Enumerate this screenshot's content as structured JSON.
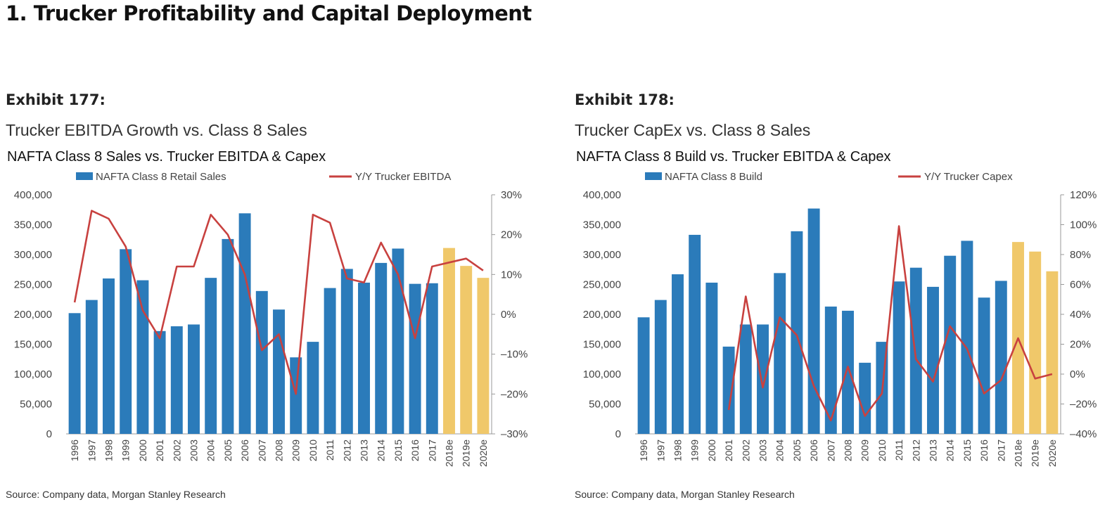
{
  "page": {
    "title": "1. Trucker Profitability and Capital Deployment"
  },
  "colors": {
    "bar": "#2b7bba",
    "bar_forecast": "#f0c86a",
    "line": "#c8413f",
    "axis": "#999999"
  },
  "exhibits": [
    {
      "number": "Exhibit 177:",
      "subtitle": "Trucker EBITDA Growth vs. Class 8 Sales",
      "source": "Source: Company data, Morgan Stanley Research"
    },
    {
      "number": "Exhibit 178:",
      "subtitle": "Trucker CapEx vs. Class 8 Sales",
      "source": "Source: Company data, Morgan Stanley Research"
    }
  ],
  "chart_data": [
    {
      "type": "bar",
      "title": "NAFTA Class 8 Sales vs. Trucker EBITDA & Capex",
      "categories": [
        "1996",
        "1997",
        "1998",
        "1999",
        "2000",
        "2001",
        "2002",
        "2003",
        "2004",
        "2005",
        "2006",
        "2007",
        "2008",
        "2009",
        "2010",
        "2011",
        "2012",
        "2013",
        "2014",
        "2015",
        "2016",
        "2017",
        "2018e",
        "2019e",
        "2020e"
      ],
      "forecast_categories": [
        "2018e",
        "2019e",
        "2020e"
      ],
      "series": [
        {
          "name": "NAFTA Class 8 Retail Sales",
          "type": "bar",
          "axis": "left",
          "values": [
            202000,
            224000,
            260000,
            309000,
            257000,
            172000,
            180000,
            183000,
            261000,
            326000,
            369000,
            239000,
            208000,
            128000,
            154000,
            244000,
            276000,
            253000,
            286000,
            310000,
            251000,
            252000,
            311000,
            281000,
            261000
          ]
        },
        {
          "name": "Y/Y Trucker EBITDA",
          "type": "line",
          "axis": "right",
          "values": [
            3,
            26,
            24,
            17,
            1,
            -6,
            12,
            12,
            25,
            20,
            10,
            -9,
            -5,
            -20,
            25,
            23,
            9,
            8,
            18,
            10,
            -6,
            12,
            13,
            14,
            11
          ]
        }
      ],
      "left_axis": {
        "min": 0,
        "max": 400000,
        "step": 50000,
        "ticks": [
          "0",
          "50,000",
          "100,000",
          "150,000",
          "200,000",
          "250,000",
          "300,000",
          "350,000",
          "400,000"
        ]
      },
      "right_axis": {
        "min": -30,
        "max": 30,
        "step": 10,
        "ticks": [
          "-30%",
          "-20%",
          "-10%",
          "0%",
          "10%",
          "20%",
          "30%"
        ]
      },
      "legend": "top"
    },
    {
      "type": "bar",
      "title": "NAFTA Class 8 Build vs. Trucker EBITDA & Capex",
      "categories": [
        "1996",
        "1997",
        "1998",
        "1999",
        "2000",
        "2001",
        "2002",
        "2003",
        "2004",
        "2005",
        "2006",
        "2007",
        "2008",
        "2009",
        "2010",
        "2011",
        "2012",
        "2013",
        "2014",
        "2015",
        "2016",
        "2017",
        "2018e",
        "2019e",
        "2020e"
      ],
      "forecast_categories": [
        "2018e",
        "2019e",
        "2020e"
      ],
      "series": [
        {
          "name": "NAFTA Class 8 Build",
          "type": "bar",
          "axis": "left",
          "values": [
            195000,
            224000,
            267000,
            333000,
            253000,
            146000,
            183000,
            183000,
            269000,
            339000,
            377000,
            213000,
            206000,
            119000,
            154000,
            255000,
            278000,
            246000,
            298000,
            323000,
            228000,
            256000,
            321000,
            305000,
            272000
          ]
        },
        {
          "name": "Y/Y Trucker Capex",
          "type": "line",
          "axis": "right",
          "values": [
            null,
            null,
            null,
            null,
            null,
            -24,
            52,
            -9,
            38,
            26,
            -8,
            -31,
            5,
            -28,
            -13,
            99,
            10,
            -5,
            32,
            17,
            -13,
            -4,
            24,
            -3,
            0
          ]
        }
      ],
      "left_axis": {
        "min": 0,
        "max": 400000,
        "step": 50000,
        "ticks": [
          "0",
          "50,000",
          "100,000",
          "150,000",
          "200,000",
          "250,000",
          "300,000",
          "350,000",
          "400,000"
        ]
      },
      "right_axis": {
        "min": -40,
        "max": 120,
        "step": 20,
        "ticks": [
          "-40%",
          "-20%",
          "0%",
          "20%",
          "40%",
          "60%",
          "80%",
          "100%",
          "120%"
        ]
      },
      "legend": "top"
    }
  ]
}
